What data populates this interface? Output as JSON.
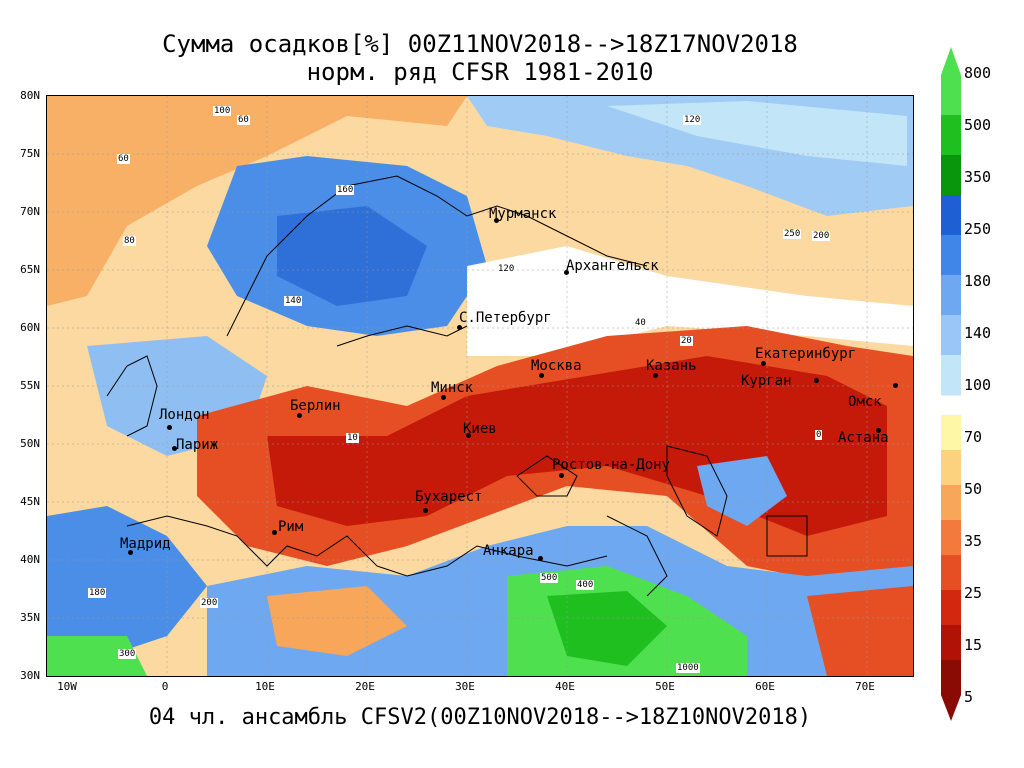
{
  "title_line1": "Сумма осадков[%] 00Z11NOV2018-->18Z17NOV2018",
  "title_line2": "норм. ряд CFSR 1981-2010",
  "bottom_title": "04 чл. ансамбль CFSV2(00Z10NOV2018-->18Z10NOV2018)",
  "lat_labels": [
    "80N",
    "75N",
    "70N",
    "65N",
    "60N",
    "55N",
    "50N",
    "45N",
    "40N",
    "35N",
    "30N"
  ],
  "lon_labels": [
    "10W",
    "0",
    "10E",
    "20E",
    "30E",
    "40E",
    "50E",
    "60E",
    "70E"
  ],
  "cities": [
    {
      "name": "Мурманск"
    },
    {
      "name": "Архангельск"
    },
    {
      "name": "С.Петербург"
    },
    {
      "name": "Москва"
    },
    {
      "name": "Казань"
    },
    {
      "name": "Екатеринбург"
    },
    {
      "name": "Курган"
    },
    {
      "name": "Омск"
    },
    {
      "name": "Астана"
    },
    {
      "name": "Минск"
    },
    {
      "name": "Киев"
    },
    {
      "name": "Берлин"
    },
    {
      "name": "Лондон"
    },
    {
      "name": "Париж"
    },
    {
      "name": "Ростов-на-Дону"
    },
    {
      "name": "Бухарест"
    },
    {
      "name": "Рим"
    },
    {
      "name": "Мадрид"
    },
    {
      "name": "Анкара"
    }
  ],
  "contour_labels": [
    "100",
    "60",
    "80",
    "160",
    "120",
    "140",
    "40",
    "20",
    "10",
    "0",
    "200",
    "300",
    "400",
    "500",
    "1000",
    "180",
    "250",
    "60",
    "120",
    "200"
  ],
  "colorbar": {
    "labels_top": [
      "800",
      "500",
      "350",
      "250",
      "180",
      "140"
    ],
    "label_mid": "100",
    "labels_bottom": [
      "70",
      "50",
      "35",
      "25",
      "15",
      "5"
    ],
    "colors_top": [
      "#4fe04f",
      "#1fbf1f",
      "#0a960a",
      "#1e5fd4",
      "#3f86e8",
      "#6ea8f0",
      "#99c6f5",
      "#c2e6f8"
    ],
    "colors_bottom": [
      "#fdf7a6",
      "#fcd27f",
      "#f8a65a",
      "#f27a3d",
      "#e54f23",
      "#d2280f",
      "#b01206",
      "#8a0a04"
    ]
  }
}
